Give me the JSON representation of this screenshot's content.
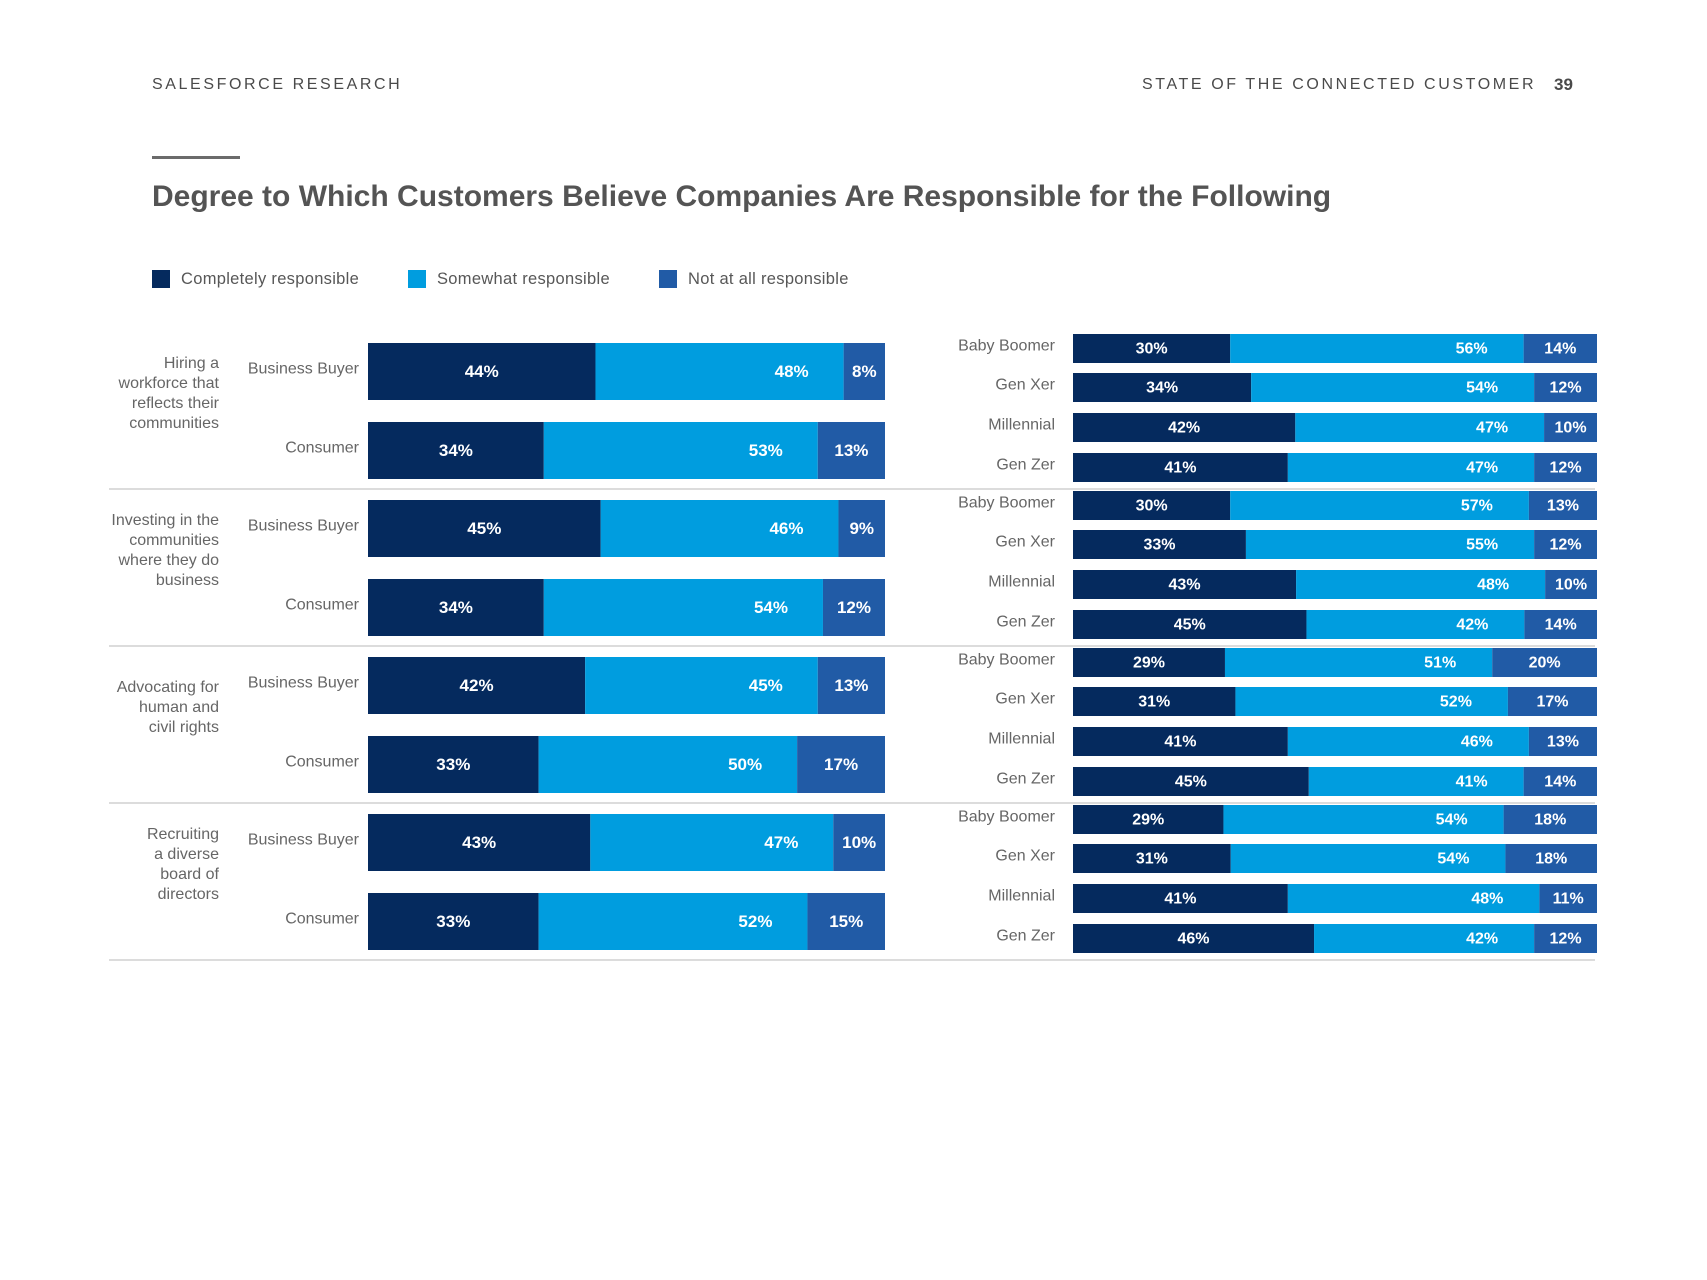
{
  "header": {
    "left": "SALESFORCE RESEARCH",
    "right": "STATE OF THE CONNECTED CUSTOMER",
    "page_number": "39"
  },
  "chart_data": {
    "type": "bar",
    "orientation": "horizontal",
    "stacked": true,
    "title": "Degree to Which Customers Believe Companies Are Responsible for the Following",
    "legend": [
      {
        "name": "Completely responsible",
        "color": "#052a5e"
      },
      {
        "name": "Somewhat responsible",
        "color": "#009ddf"
      },
      {
        "name": "Not at all responsible",
        "color": "#215ba6"
      }
    ],
    "legend_position": "top-left",
    "series_names": [
      "Completely responsible",
      "Somewhat responsible",
      "Not at all responsible"
    ],
    "groups": [
      {
        "name": "Hiring a workforce that reflects their communities",
        "name_lines": [
          "Hiring a",
          "workforce that",
          "reflects their",
          "communities"
        ],
        "by_role": [
          {
            "label": "Business Buyer",
            "values": [
              44,
              48,
              8
            ]
          },
          {
            "label": "Consumer",
            "values": [
              34,
              53,
              13
            ]
          }
        ],
        "by_generation": [
          {
            "label": "Baby Boomer",
            "values": [
              30,
              56,
              14
            ]
          },
          {
            "label": "Gen Xer",
            "values": [
              34,
              54,
              12
            ]
          },
          {
            "label": "Millennial",
            "values": [
              42,
              47,
              10
            ]
          },
          {
            "label": "Gen Zer",
            "values": [
              41,
              47,
              12
            ]
          }
        ]
      },
      {
        "name": "Investing in the communities where they do business",
        "name_lines": [
          "Investing in the",
          "communities",
          "where they do",
          "business"
        ],
        "by_role": [
          {
            "label": "Business Buyer",
            "values": [
              45,
              46,
              9
            ]
          },
          {
            "label": "Consumer",
            "values": [
              34,
              54,
              12
            ]
          }
        ],
        "by_generation": [
          {
            "label": "Baby Boomer",
            "values": [
              30,
              57,
              13
            ]
          },
          {
            "label": "Gen Xer",
            "values": [
              33,
              55,
              12
            ]
          },
          {
            "label": "Millennial",
            "values": [
              43,
              48,
              10
            ]
          },
          {
            "label": "Gen Zer",
            "values": [
              45,
              42,
              14
            ]
          }
        ]
      },
      {
        "name": "Advocating for human and civil rights",
        "name_lines": [
          "Advocating for",
          "human and",
          "civil rights"
        ],
        "by_role": [
          {
            "label": "Business Buyer",
            "values": [
              42,
              45,
              13
            ]
          },
          {
            "label": "Consumer",
            "values": [
              33,
              50,
              17
            ]
          }
        ],
        "by_generation": [
          {
            "label": "Baby Boomer",
            "values": [
              29,
              51,
              20
            ]
          },
          {
            "label": "Gen Xer",
            "values": [
              31,
              52,
              17
            ]
          },
          {
            "label": "Millennial",
            "values": [
              41,
              46,
              13
            ]
          },
          {
            "label": "Gen Zer",
            "values": [
              45,
              41,
              14
            ]
          }
        ]
      },
      {
        "name": "Recruiting a diverse board of directors",
        "name_lines": [
          "Recruiting",
          "a diverse",
          "board of",
          "directors"
        ],
        "by_role": [
          {
            "label": "Business Buyer",
            "values": [
              43,
              47,
              10
            ]
          },
          {
            "label": "Consumer",
            "values": [
              33,
              52,
              15
            ]
          }
        ],
        "by_generation": [
          {
            "label": "Baby Boomer",
            "values": [
              29,
              54,
              18
            ]
          },
          {
            "label": "Gen Xer",
            "values": [
              31,
              54,
              18
            ]
          },
          {
            "label": "Millennial",
            "values": [
              41,
              48,
              11
            ]
          },
          {
            "label": "Gen Zer",
            "values": [
              46,
              42,
              12
            ]
          }
        ]
      }
    ],
    "value_suffix": "%"
  }
}
